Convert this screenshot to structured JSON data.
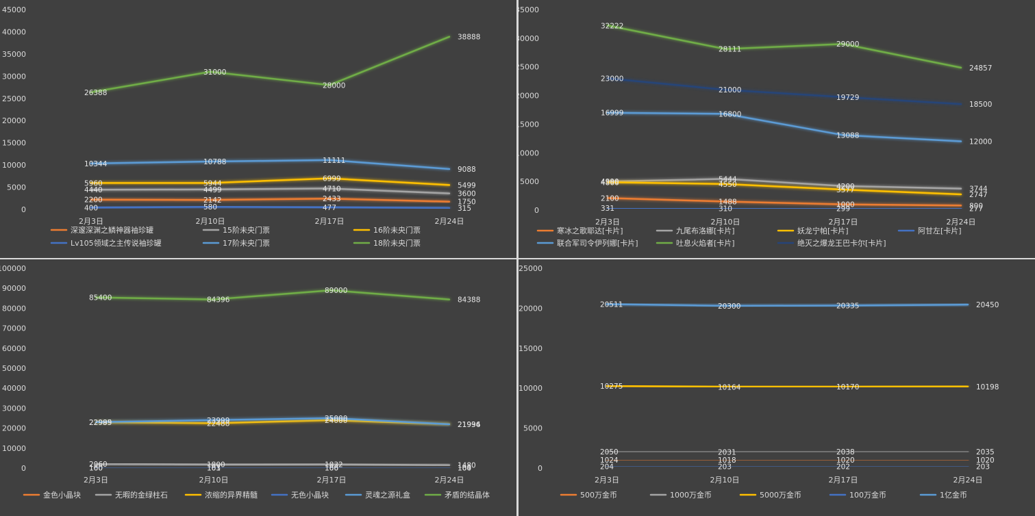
{
  "chart_data": [
    {
      "type": "line",
      "categories": [
        "2月3日",
        "2月10日",
        "2月17日",
        "2月24日"
      ],
      "ylim": [
        0,
        45000
      ],
      "yticks": [
        0,
        5000,
        10000,
        15000,
        20000,
        25000,
        30000,
        35000,
        40000,
        45000
      ],
      "grid": false,
      "legend": "bottom",
      "series": [
        {
          "name": "深邃深渊之鳞神器袖珍罐",
          "color": "#ed7d31",
          "values": [
            2200,
            2142,
            2433,
            1750
          ]
        },
        {
          "name": "15阶未央门票",
          "color": "#a5a5a5",
          "values": [
            4440,
            4499,
            4710,
            3600
          ]
        },
        {
          "name": "16阶未央门票",
          "color": "#ffc000",
          "values": [
            5960,
            5944,
            6999,
            5499
          ]
        },
        {
          "name": "Lv105领域之主传说袖珍罐",
          "color": "#4472c4",
          "values": [
            400,
            580,
            477,
            315
          ]
        },
        {
          "name": "17阶未央门票",
          "color": "#5b9bd5",
          "values": [
            10344,
            10788,
            11111,
            9088
          ]
        },
        {
          "name": "18阶未央门票",
          "color": "#70ad47",
          "values": [
            26388,
            31000,
            28000,
            38888
          ]
        }
      ]
    },
    {
      "type": "line",
      "categories": [
        "2月3日",
        "2月10日",
        "2月17日",
        "2月24日"
      ],
      "ylim": [
        0,
        35000
      ],
      "yticks": [
        0,
        5000,
        10000,
        15000,
        20000,
        25000,
        30000,
        35000
      ],
      "grid": false,
      "legend": "bottom",
      "series": [
        {
          "name": "寒冰之歌耶达[卡片]",
          "color": "#ed7d31",
          "values": [
            2100,
            1488,
            1000,
            800
          ]
        },
        {
          "name": "九尾布洛娜[卡片]",
          "color": "#a5a5a5",
          "values": [
            4990,
            5444,
            4200,
            3744
          ]
        },
        {
          "name": "妖龙宁帕[卡片]",
          "color": "#ffc000",
          "values": [
            4866,
            4550,
            3577,
            2747
          ]
        },
        {
          "name": "阿甘左[卡片]",
          "color": "#4472c4",
          "values": [
            331,
            310,
            299,
            277
          ]
        },
        {
          "name": "联合军司令伊列娜[卡片]",
          "color": "#5b9bd5",
          "values": [
            16999,
            16800,
            13088,
            12000
          ]
        },
        {
          "name": "吐息火焰者[卡片]",
          "color": "#70ad47",
          "values": [
            32222,
            28111,
            29000,
            24857
          ]
        },
        {
          "name": "绝灭之爆龙王巴卡尔[卡片]",
          "color": "#264478",
          "values": [
            23000,
            21000,
            19729,
            18500
          ]
        }
      ]
    },
    {
      "type": "line",
      "categories": [
        "2月3日",
        "2月10日",
        "2月17日",
        "2月24日"
      ],
      "ylim": [
        0,
        100000
      ],
      "yticks": [
        0,
        10000,
        20000,
        30000,
        40000,
        50000,
        60000,
        70000,
        80000,
        90000,
        100000
      ],
      "grid": false,
      "legend": "bottom",
      "series": [
        {
          "name": "金色小晶块",
          "color": "#ed7d31",
          "values": [
            160,
            163,
            166,
            164
          ]
        },
        {
          "name": "无暇的金绿柱石",
          "color": "#a5a5a5",
          "values": [
            2060,
            1800,
            1832,
            1480
          ]
        },
        {
          "name": "浓缩的异界精髓",
          "color": "#ffc000",
          "values": [
            22985,
            22488,
            24000,
            21996
          ]
        },
        {
          "name": "无色小晶块",
          "color": "#4472c4",
          "values": [
            100,
            101,
            100,
            100
          ]
        },
        {
          "name": "灵魂之源礼盒",
          "color": "#5b9bd5",
          "values": [
            22999,
            23999,
            25000,
            21934
          ]
        },
        {
          "name": "矛盾的结晶体",
          "color": "#70ad47",
          "values": [
            85400,
            84396,
            89000,
            84388
          ]
        }
      ]
    },
    {
      "type": "line",
      "categories": [
        "2月3日",
        "2月10日",
        "2月17日",
        "2月24日"
      ],
      "ylim": [
        0,
        25000
      ],
      "yticks": [
        0,
        5000,
        10000,
        15000,
        20000,
        25000
      ],
      "grid": false,
      "legend": "bottom",
      "series": [
        {
          "name": "500万金币",
          "color": "#ed7d31",
          "values": [
            1024,
            1018,
            1020,
            1020
          ]
        },
        {
          "name": "1000万金币",
          "color": "#a5a5a5",
          "values": [
            2050,
            2031,
            2038,
            2035
          ]
        },
        {
          "name": "5000万金币",
          "color": "#ffc000",
          "values": [
            10275,
            10164,
            10170,
            10198
          ]
        },
        {
          "name": "100万金币",
          "color": "#4472c4",
          "values": [
            204,
            203,
            202,
            203
          ]
        },
        {
          "name": "1亿金币",
          "color": "#5b9bd5",
          "values": [
            20511,
            20300,
            20335,
            20450
          ]
        }
      ]
    }
  ]
}
